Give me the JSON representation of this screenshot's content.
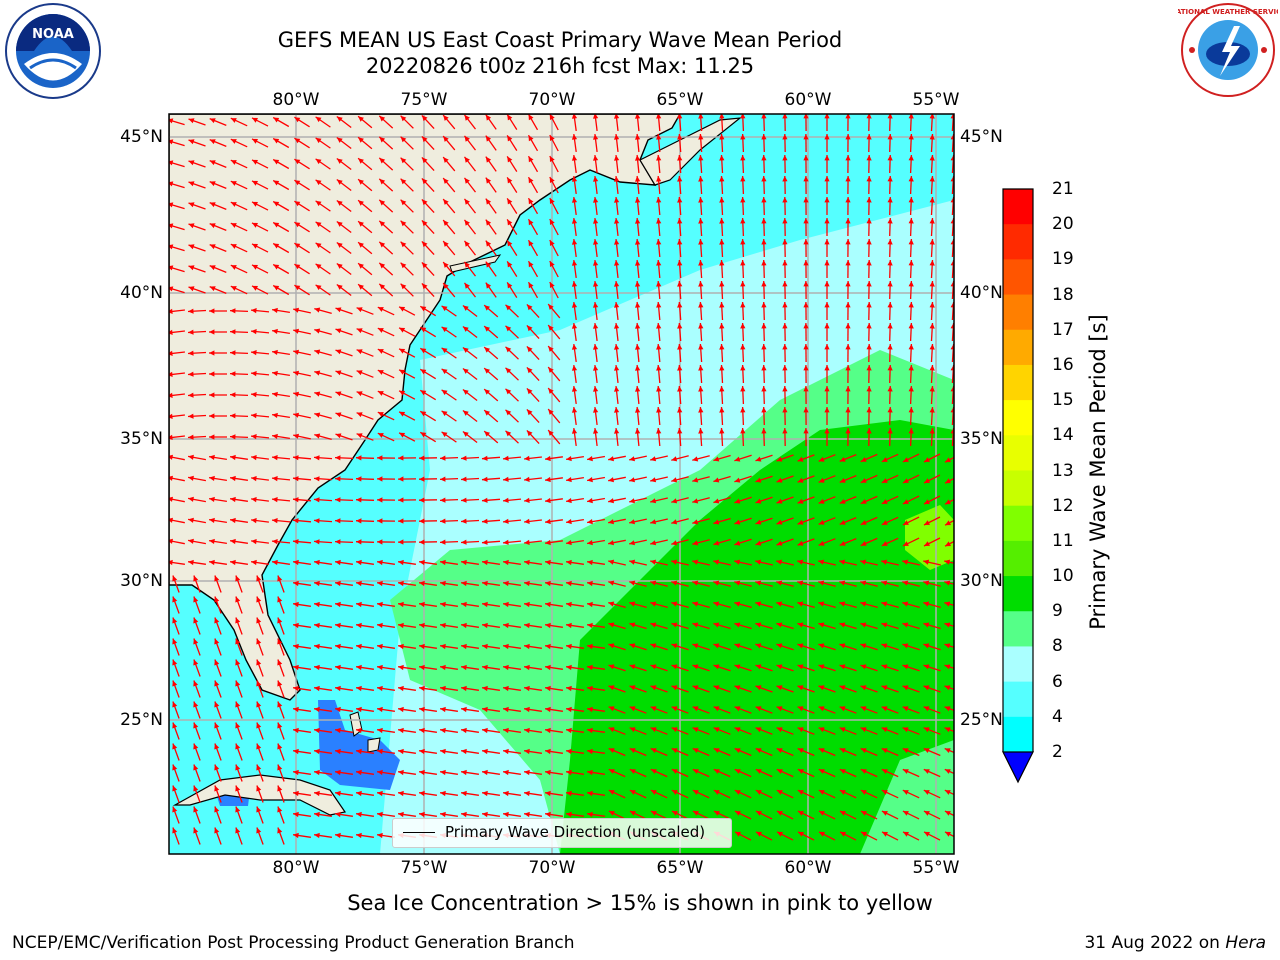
{
  "title": {
    "line1": "GEFS MEAN US East Coast Primary Wave Mean Period",
    "line2": "20220826 t00z 216h fcst   Max: 11.25"
  },
  "logos": {
    "noaa": {
      "text": "NOAA",
      "ring_top": "NATIONAL OCEANIC AND ATMOSPHERIC ADMINISTRATION",
      "ring_bottom": "U.S. DEPARTMENT OF COMMERCE"
    },
    "nws": {
      "ring": "NATIONAL WEATHER SERVICE"
    }
  },
  "map": {
    "longitude_ticks": [
      "80°W",
      "75°W",
      "70°W",
      "65°W",
      "60°W",
      "55°W"
    ],
    "latitude_ticks": [
      "45°N",
      "40°N",
      "35°N",
      "30°N",
      "25°N"
    ],
    "land_color": "#efedde",
    "grid_color": "#b0b0b0",
    "arrow_color": "#ff0000",
    "extent": {
      "lon": [
        -85,
        -54.5
      ],
      "lat": [
        20.5,
        46
      ]
    }
  },
  "colorbar": {
    "label": "Primary Wave Mean Period [s]",
    "ticks": [
      "21",
      "20",
      "19",
      "18",
      "17",
      "16",
      "15",
      "14",
      "13",
      "12",
      "11",
      "10",
      "9",
      "8",
      "6",
      "4",
      "2"
    ],
    "colors_top_to_bottom": [
      "#ff0000",
      "#ff2a00",
      "#ff5500",
      "#ff7f00",
      "#ffaa00",
      "#ffd400",
      "#ffff00",
      "#e8ff00",
      "#c8ff00",
      "#80ff00",
      "#55ee00",
      "#00dd00",
      "#55ff88",
      "#aaffff",
      "#55ffff",
      "#00ffff",
      "#007fff"
    ],
    "under_color": "#0000ff"
  },
  "legend": {
    "label": "Primary Wave Direction (unscaled)"
  },
  "footnote": "Sea Ice Concentration > 15% is shown in pink to yellow",
  "credit": "NCEP/EMC/Verification Post Processing Product Generation Branch",
  "date": {
    "text": "31 Aug 2022 on",
    "host": "Hera"
  }
}
